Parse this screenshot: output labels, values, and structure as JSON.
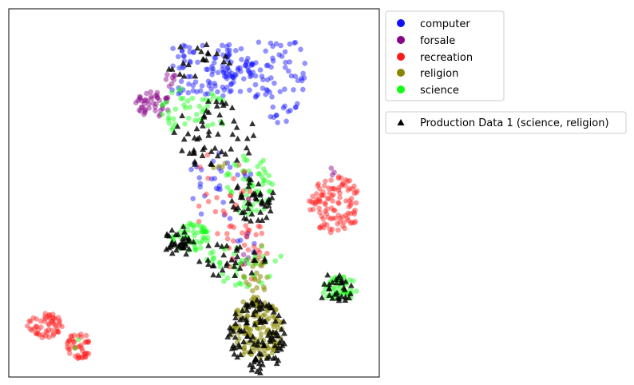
{
  "chart_data": {
    "type": "scatter",
    "title": "",
    "xlabel": "",
    "ylabel": "",
    "axes_ticks": "none",
    "grid": false,
    "legend_primary": {
      "placement": "outside-top-right",
      "entries": [
        {
          "name": "computer",
          "marker": "circle",
          "color": "#1010ff"
        },
        {
          "name": "forsale",
          "marker": "circle",
          "color": "#880088"
        },
        {
          "name": "recreation",
          "marker": "circle",
          "color": "#ff1a1a"
        },
        {
          "name": "religion",
          "marker": "circle",
          "color": "#888800"
        },
        {
          "name": "science",
          "marker": "circle",
          "color": "#10ff10"
        }
      ]
    },
    "legend_secondary": {
      "placement": "outside-right-below",
      "entries": [
        {
          "name": "Production Data 1 (science, religion)",
          "marker": "triangle",
          "color": "#000000"
        }
      ]
    },
    "series": [
      {
        "name": "computer",
        "marker": "circle",
        "color": "#1010ff",
        "opacity": 0.45,
        "clusters": [
          {
            "shape": "box",
            "x": [
              0.44,
              0.8
            ],
            "y": [
              0.76,
              0.91
            ],
            "n": 150,
            "seed": 11
          },
          {
            "shape": "ellipse",
            "cx": 0.6,
            "cy": 0.81,
            "rx": 0.07,
            "ry": 0.04,
            "n": 25,
            "seed": 12
          },
          {
            "shape": "ellipse",
            "cx": 0.75,
            "cy": 0.72,
            "rx": 0.05,
            "ry": 0.04,
            "n": 14,
            "seed": 13
          },
          {
            "shape": "ellipse",
            "cx": 0.57,
            "cy": 0.52,
            "rx": 0.09,
            "ry": 0.1,
            "n": 30,
            "seed": 14
          },
          {
            "shape": "ellipse",
            "cx": 0.64,
            "cy": 0.35,
            "rx": 0.04,
            "ry": 0.05,
            "n": 6,
            "seed": 15
          }
        ]
      },
      {
        "name": "forsale",
        "marker": "circle",
        "color": "#880088",
        "opacity": 0.45,
        "clusters": [
          {
            "shape": "ellipse",
            "cx": 0.39,
            "cy": 0.74,
            "rx": 0.05,
            "ry": 0.035,
            "n": 45,
            "seed": 21
          },
          {
            "shape": "ellipse",
            "cx": 0.44,
            "cy": 0.8,
            "rx": 0.02,
            "ry": 0.03,
            "n": 8,
            "seed": 22
          },
          {
            "shape": "ellipse",
            "cx": 0.64,
            "cy": 0.32,
            "rx": 0.03,
            "ry": 0.03,
            "n": 7,
            "seed": 23
          },
          {
            "shape": "ellipse",
            "cx": 0.88,
            "cy": 0.55,
            "rx": 0.02,
            "ry": 0.02,
            "n": 3,
            "seed": 24
          }
        ]
      },
      {
        "name": "recreation",
        "marker": "circle",
        "color": "#ff1a1a",
        "opacity": 0.45,
        "clusters": [
          {
            "shape": "ellipse",
            "cx": 0.88,
            "cy": 0.47,
            "rx": 0.07,
            "ry": 0.08,
            "n": 110,
            "seed": 31
          },
          {
            "shape": "ellipse",
            "cx": 0.1,
            "cy": 0.14,
            "rx": 0.05,
            "ry": 0.035,
            "n": 55,
            "seed": 32
          },
          {
            "shape": "ellipse",
            "cx": 0.19,
            "cy": 0.085,
            "rx": 0.035,
            "ry": 0.035,
            "n": 45,
            "seed": 33
          },
          {
            "shape": "ellipse",
            "cx": 0.64,
            "cy": 0.35,
            "rx": 0.06,
            "ry": 0.09,
            "n": 30,
            "seed": 34
          },
          {
            "shape": "ellipse",
            "cx": 0.58,
            "cy": 0.5,
            "rx": 0.1,
            "ry": 0.12,
            "n": 25,
            "seed": 35
          }
        ]
      },
      {
        "name": "religion",
        "marker": "circle",
        "color": "#888800",
        "opacity": 0.55,
        "clusters": [
          {
            "shape": "ellipse",
            "cx": 0.67,
            "cy": 0.13,
            "rx": 0.07,
            "ry": 0.09,
            "n": 140,
            "seed": 41
          },
          {
            "shape": "ellipse",
            "cx": 0.67,
            "cy": 0.27,
            "rx": 0.04,
            "ry": 0.05,
            "n": 20,
            "seed": 42
          },
          {
            "shape": "ellipse",
            "cx": 0.56,
            "cy": 0.57,
            "rx": 0.03,
            "ry": 0.03,
            "n": 4,
            "seed": 43
          }
        ]
      },
      {
        "name": "science",
        "marker": "circle",
        "color": "#10ff10",
        "opacity": 0.45,
        "clusters": [
          {
            "shape": "ellipse",
            "cx": 0.5,
            "cy": 0.72,
            "rx": 0.09,
            "ry": 0.07,
            "n": 45,
            "seed": 51
          },
          {
            "shape": "ellipse",
            "cx": 0.65,
            "cy": 0.52,
            "rx": 0.07,
            "ry": 0.09,
            "n": 55,
            "seed": 52
          },
          {
            "shape": "ellipse",
            "cx": 0.49,
            "cy": 0.38,
            "rx": 0.05,
            "ry": 0.04,
            "n": 50,
            "seed": 53
          },
          {
            "shape": "ellipse",
            "cx": 0.89,
            "cy": 0.24,
            "rx": 0.05,
            "ry": 0.035,
            "n": 50,
            "seed": 54
          },
          {
            "shape": "ellipse",
            "cx": 0.64,
            "cy": 0.3,
            "rx": 0.12,
            "ry": 0.06,
            "n": 40,
            "seed": 55
          },
          {
            "shape": "ellipse",
            "cx": 0.18,
            "cy": 0.09,
            "rx": 0.02,
            "ry": 0.02,
            "n": 2,
            "seed": 56
          }
        ]
      },
      {
        "name": "Production Data 1 (science, religion)",
        "marker": "triangle",
        "color": "#000000",
        "opacity": 0.8,
        "clusters": [
          {
            "shape": "ellipse",
            "cx": 0.67,
            "cy": 0.11,
            "rx": 0.08,
            "ry": 0.1,
            "n": 110,
            "seed": 61
          },
          {
            "shape": "ellipse",
            "cx": 0.46,
            "cy": 0.37,
            "rx": 0.05,
            "ry": 0.04,
            "n": 35,
            "seed": 62
          },
          {
            "shape": "ellipse",
            "cx": 0.66,
            "cy": 0.48,
            "rx": 0.06,
            "ry": 0.06,
            "n": 45,
            "seed": 63
          },
          {
            "shape": "ellipse",
            "cx": 0.88,
            "cy": 0.24,
            "rx": 0.05,
            "ry": 0.04,
            "n": 30,
            "seed": 64
          },
          {
            "shape": "ellipse",
            "cx": 0.55,
            "cy": 0.66,
            "rx": 0.12,
            "ry": 0.09,
            "n": 55,
            "seed": 65
          },
          {
            "shape": "ellipse",
            "cx": 0.52,
            "cy": 0.86,
            "rx": 0.1,
            "ry": 0.05,
            "n": 20,
            "seed": 66
          },
          {
            "shape": "ellipse",
            "cx": 0.6,
            "cy": 0.32,
            "rx": 0.1,
            "ry": 0.05,
            "n": 30,
            "seed": 67
          }
        ]
      }
    ]
  }
}
